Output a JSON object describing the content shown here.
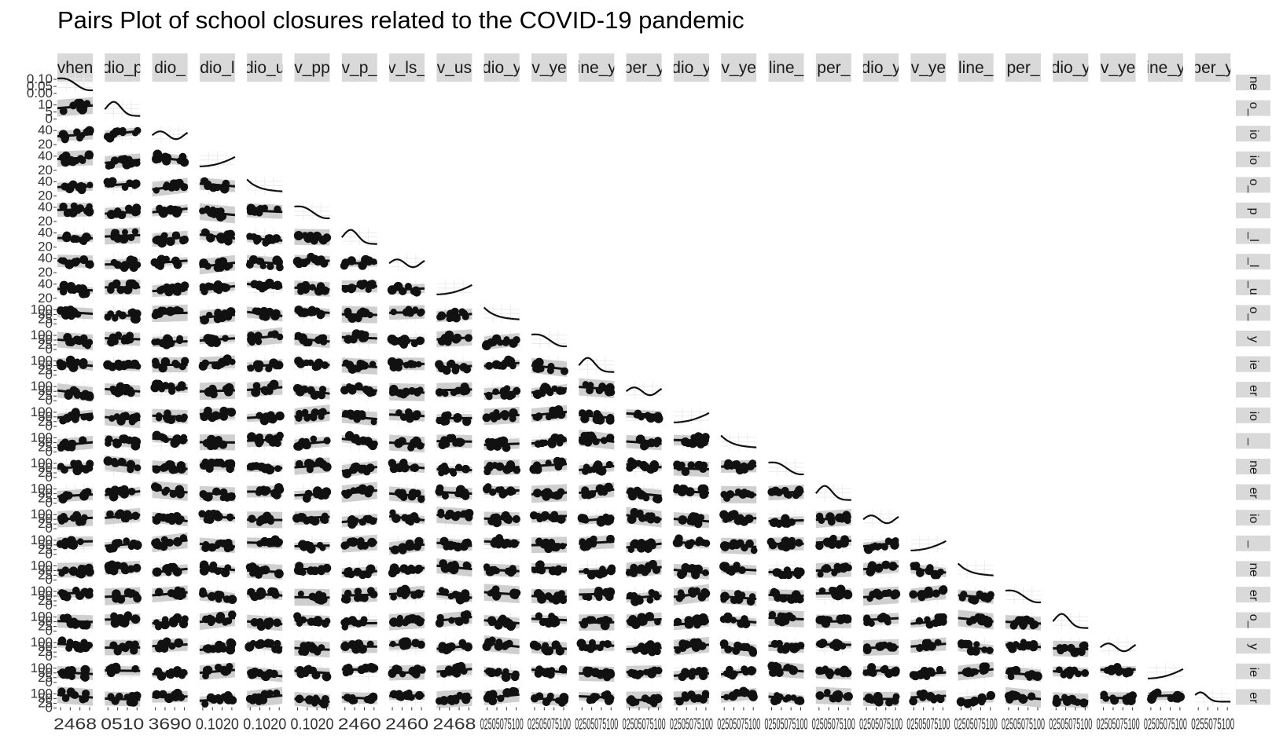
{
  "chart_data": {
    "type": "scatter",
    "title": "Pairs Plot of school closures related to the COVID-19 pandemic",
    "top_strip_labels": [
      "vhen",
      "dio_p",
      "dio_",
      "dio_l",
      "dio_u",
      "v_pp",
      "v_p_",
      "v_ls_",
      "v_us",
      "dio_y",
      "v_ye",
      "ine_y",
      "per_y",
      "dio_y",
      "v_ye",
      "line_",
      "per_",
      "dio_y",
      "v_ye",
      "line_",
      "per_",
      "dio_y",
      "v_ye",
      "ine_y",
      "per_y"
    ],
    "right_strip_labels": [
      "ne",
      "o_",
      "io",
      "io",
      "o_",
      "p",
      "_l",
      "_l",
      "_u",
      "o_",
      "y",
      "ie",
      "er",
      "io",
      "_",
      "ne",
      "er",
      "io",
      "_",
      "ne",
      "er",
      "o_",
      "y",
      "ie",
      "er"
    ],
    "y_tick_labels_top": [
      "0.10",
      "0.05",
      "0.00"
    ],
    "y_tick_labels_row": [
      "10",
      "5",
      "0"
    ],
    "y_tick_labels_other": [
      "40",
      "20"
    ],
    "y_tick_labels_lower": [
      "100",
      "50",
      "25",
      "0"
    ],
    "x_tick_labels_bottom": [
      "2468",
      "0510",
      "3690",
      "0.1020",
      "0.1020",
      "0.1020",
      "2460",
      "2460",
      "2468",
      "02505075100",
      "02505075100",
      "02505075100",
      "02505075100",
      "02505075100",
      "02505075100",
      "02505075100",
      "02505075100",
      "02505075100",
      "02505075100",
      "02505075100",
      "02505075100",
      "02505075100",
      "02505075100",
      "02505075100",
      "0255075100"
    ],
    "grid": true,
    "panels": "lower triangle scatter with fitted line and grey band; diagonal density curves"
  }
}
